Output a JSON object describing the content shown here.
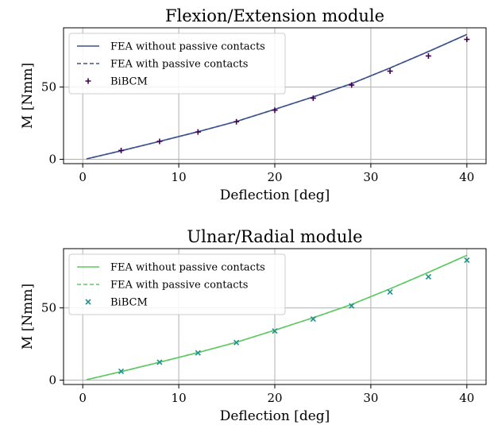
{
  "chart_data": [
    {
      "type": "line",
      "title": "Flexion/Extension module",
      "xlabel": "Deflection [deg]",
      "ylabel": "M [Nmm]",
      "xlim": [
        -2,
        42
      ],
      "ylim": [
        -3,
        91
      ],
      "xticks": [
        0,
        10,
        20,
        30,
        40
      ],
      "yticks": [
        0,
        50
      ],
      "grid": true,
      "legend_position": "top-left",
      "series": [
        {
          "name": "FEA without passive contacts",
          "style": "solid",
          "color": "#3b528b",
          "x": [
            0.4,
            4,
            8,
            12,
            16,
            20,
            24,
            28,
            32,
            36,
            40
          ],
          "y": [
            0.3,
            5.9,
            12.4,
            19.1,
            26.2,
            34.6,
            43.2,
            52.4,
            63.2,
            74.6,
            86.4
          ]
        },
        {
          "name": "FEA with passive contacts",
          "style": "dashed",
          "color": "#3b528b",
          "x": [
            0.4,
            4,
            8,
            12,
            16,
            20,
            24,
            28,
            32,
            36,
            40
          ],
          "y": [
            0.3,
            5.9,
            12.4,
            19.1,
            26.2,
            34.6,
            43.2,
            52.4,
            63.2,
            74.6,
            86.4
          ]
        },
        {
          "name": "BiBCM",
          "style": "marker",
          "marker": "plus",
          "color": "#440154",
          "x": [
            4,
            8,
            12,
            16,
            20,
            24,
            28,
            32,
            36,
            40
          ],
          "y": [
            6.1,
            12.4,
            18.9,
            26.0,
            34.0,
            42.3,
            51.4,
            61.0,
            71.5,
            83.0
          ]
        }
      ]
    },
    {
      "type": "line",
      "title": "Ulnar/Radial module",
      "xlabel": "Deflection [deg]",
      "ylabel": "M [Nmm]",
      "xlim": [
        -2,
        42
      ],
      "ylim": [
        -3,
        91
      ],
      "xticks": [
        0,
        10,
        20,
        30,
        40
      ],
      "yticks": [
        0,
        50
      ],
      "grid": true,
      "legend_position": "top-left",
      "series": [
        {
          "name": "FEA without passive contacts",
          "style": "solid",
          "color": "#5ec962",
          "x": [
            0.4,
            4,
            8,
            12,
            16,
            20,
            24,
            28,
            32,
            36,
            40
          ],
          "y": [
            0.3,
            5.9,
            12.4,
            19.1,
            26.2,
            34.6,
            43.2,
            52.4,
            63.2,
            74.6,
            86.4
          ]
        },
        {
          "name": "FEA with passive contacts",
          "style": "dashed",
          "color": "#5ec962",
          "x": [
            0.4,
            4,
            8,
            12,
            16,
            20,
            24,
            28,
            32,
            36,
            40
          ],
          "y": [
            0.3,
            5.9,
            12.4,
            19.1,
            26.2,
            34.6,
            43.2,
            52.4,
            63.2,
            74.6,
            86.4
          ]
        },
        {
          "name": "BiBCM",
          "style": "marker",
          "marker": "x",
          "color": "#21918c",
          "x": [
            4,
            8,
            12,
            16,
            20,
            24,
            28,
            32,
            36,
            40
          ],
          "y": [
            6.1,
            12.4,
            18.9,
            26.0,
            34.0,
            42.3,
            51.4,
            61.0,
            71.5,
            83.0
          ]
        }
      ]
    }
  ]
}
